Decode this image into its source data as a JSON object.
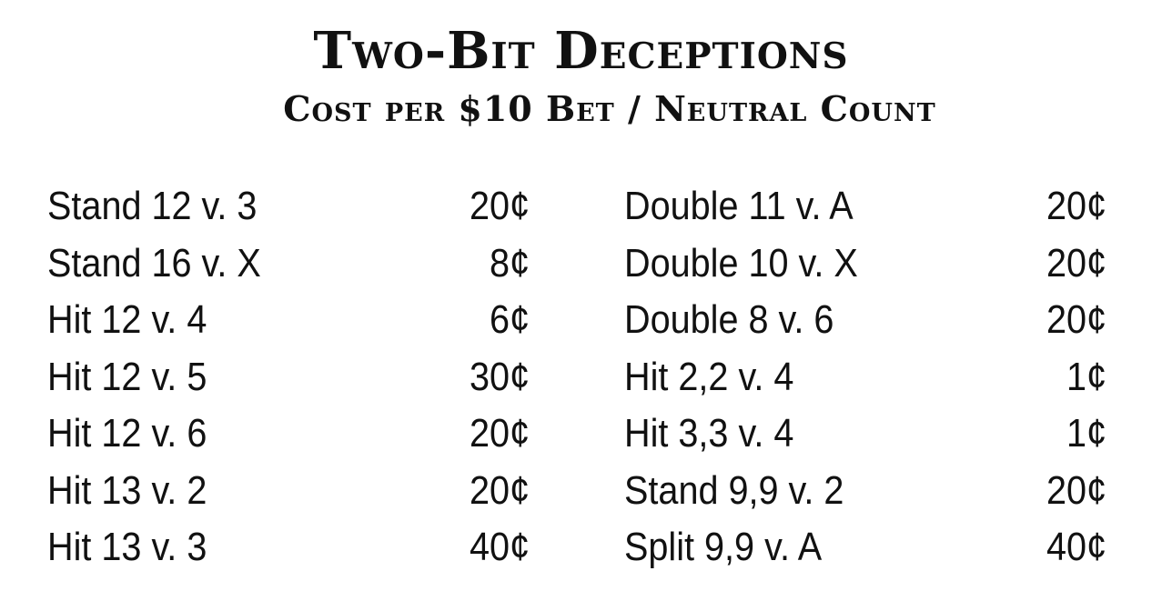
{
  "title": "Two-Bit Deceptions",
  "subtitle": "Cost per $10 Bet / Neutral Count",
  "left_column": [
    {
      "play": "Stand 12 v. 3",
      "cost": "20¢"
    },
    {
      "play": "Stand 16 v. X",
      "cost": "8¢"
    },
    {
      "play": "Hit 12 v. 4",
      "cost": "6¢"
    },
    {
      "play": "Hit 12 v. 5",
      "cost": "30¢"
    },
    {
      "play": "Hit 12 v. 6",
      "cost": "20¢"
    },
    {
      "play": "Hit 13 v. 2",
      "cost": "20¢"
    },
    {
      "play": "Hit 13 v. 3",
      "cost": "40¢"
    }
  ],
  "right_column": [
    {
      "play": "Double 11 v. A",
      "cost": "20¢"
    },
    {
      "play": "Double 10 v. X",
      "cost": "20¢"
    },
    {
      "play": "Double 8 v. 6",
      "cost": "20¢"
    },
    {
      "play": "Hit 2,2 v. 4",
      "cost": "1¢"
    },
    {
      "play": "Hit 3,3 v. 4",
      "cost": "1¢"
    },
    {
      "play": "Stand 9,9 v. 2",
      "cost": "20¢"
    },
    {
      "play": "Split 9,9 v. A",
      "cost": "40¢"
    }
  ]
}
